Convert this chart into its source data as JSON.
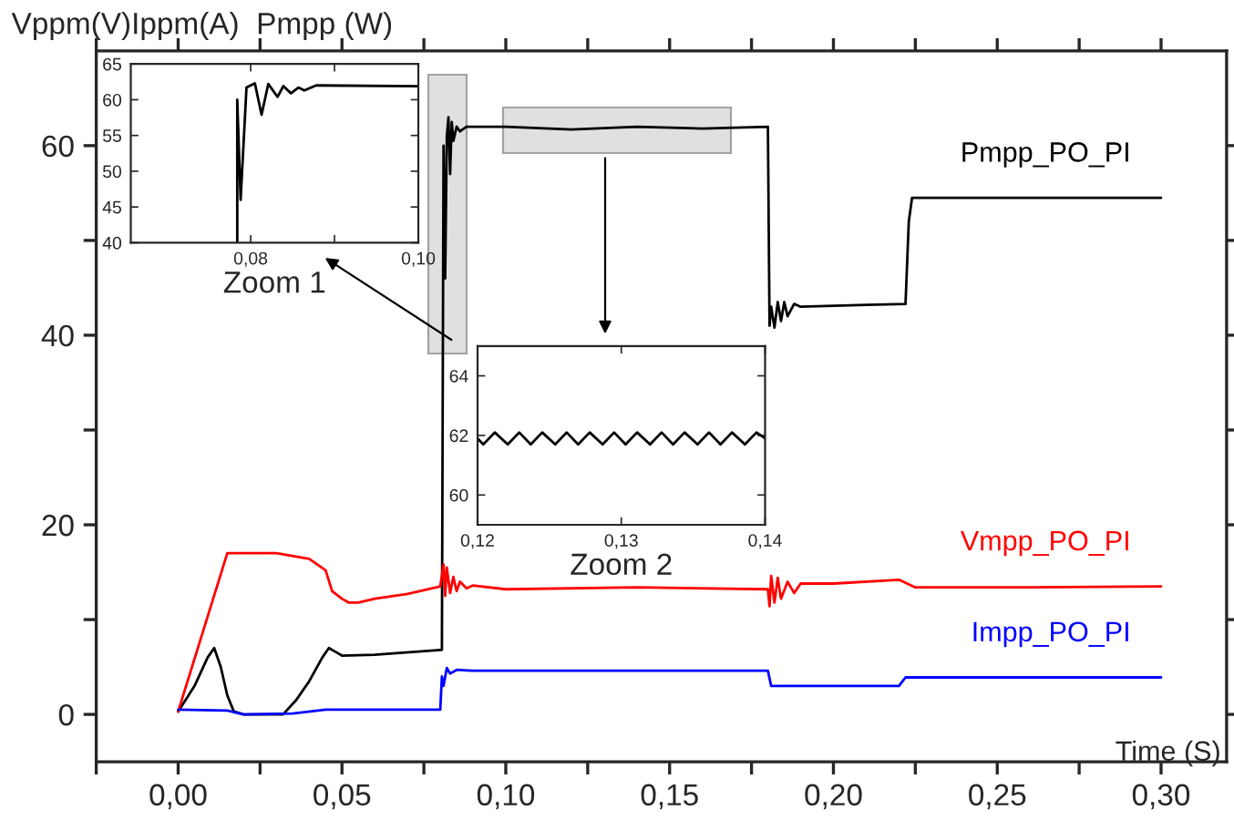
{
  "chart_data": [
    {
      "type": "line",
      "ylabel": "Vppm(V)Ippm(A)  Pmpp (W)",
      "xlabel": "Time (S)",
      "xlim": [
        -0.025,
        0.32
      ],
      "ylim": [
        -5,
        70
      ],
      "xticks": [
        {
          "value": -0.025,
          "label": null
        },
        {
          "value": 0,
          "label": "0,00"
        },
        {
          "value": 0.025,
          "label": null
        },
        {
          "value": 0.05,
          "label": "0,05"
        },
        {
          "value": 0.075,
          "label": null
        },
        {
          "value": 0.1,
          "label": "0,10"
        },
        {
          "value": 0.125,
          "label": null
        },
        {
          "value": 0.15,
          "label": "0,15"
        },
        {
          "value": 0.175,
          "label": null
        },
        {
          "value": 0.2,
          "label": "0,20"
        },
        {
          "value": 0.225,
          "label": null
        },
        {
          "value": 0.25,
          "label": "0,25"
        },
        {
          "value": 0.275,
          "label": null
        },
        {
          "value": 0.3,
          "label": "0,30"
        }
      ],
      "yticks": [
        0,
        {
          "value": 10,
          "label": null
        },
        20,
        {
          "value": 30,
          "label": null
        },
        40,
        {
          "value": 50,
          "label": null
        },
        60
      ],
      "series": [
        {
          "name": "Pmpp_PO_PI",
          "color": "#000000",
          "x": [
            0,
            0.005,
            0.009,
            0.011,
            0.013,
            0.015,
            0.017,
            0.02,
            0.032,
            0.036,
            0.04,
            0.044,
            0.046,
            0.048,
            0.05,
            0.06,
            0.08,
            0.0805,
            0.081,
            0.0815,
            0.082,
            0.0825,
            0.083,
            0.0835,
            0.084,
            0.085,
            0.086,
            0.088,
            0.1,
            0.12,
            0.14,
            0.16,
            0.18,
            0.1805,
            0.181,
            0.182,
            0.183,
            0.184,
            0.185,
            0.186,
            0.188,
            0.19,
            0.21,
            0.222,
            0.223,
            0.224,
            0.26,
            0.3
          ],
          "values": [
            0.3,
            3,
            6,
            7,
            5,
            2,
            0.3,
            0,
            0,
            1.5,
            3.5,
            6,
            7,
            6.6,
            6.2,
            6.3,
            6.8,
            6.8,
            60,
            46,
            61,
            63,
            57,
            62.5,
            60.5,
            62,
            61.5,
            62,
            62,
            61.7,
            62,
            61.8,
            62,
            41,
            43,
            40.8,
            43.5,
            41.5,
            43.5,
            42,
            43.3,
            43,
            43.2,
            43.3,
            52,
            54.5,
            54.5,
            54.5
          ]
        },
        {
          "name": "Vmpp_PO_PI",
          "color": "#ff0000",
          "x": [
            0,
            0.015,
            0.03,
            0.04,
            0.045,
            0.047,
            0.05,
            0.052,
            0.055,
            0.06,
            0.07,
            0.08,
            0.081,
            0.0815,
            0.082,
            0.083,
            0.084,
            0.085,
            0.086,
            0.088,
            0.09,
            0.1,
            0.14,
            0.18,
            0.1805,
            0.181,
            0.182,
            0.183,
            0.184,
            0.186,
            0.188,
            0.19,
            0.2,
            0.22,
            0.225,
            0.26,
            0.3
          ],
          "values": [
            0.3,
            17,
            17,
            16.4,
            15.2,
            13,
            12.2,
            11.8,
            11.8,
            12.2,
            12.7,
            13.5,
            15.8,
            12.5,
            15.5,
            12.8,
            14.5,
            13,
            14,
            13.3,
            13.6,
            13.2,
            13.4,
            13.2,
            11.4,
            14.6,
            11.8,
            14.4,
            12.2,
            14,
            12.8,
            13.8,
            13.8,
            14.2,
            13.4,
            13.4,
            13.5
          ]
        },
        {
          "name": "Impp_PO_PI",
          "color": "#0000ff",
          "x": [
            0,
            0.015,
            0.02,
            0.035,
            0.045,
            0.08,
            0.0805,
            0.081,
            0.082,
            0.083,
            0.085,
            0.09,
            0.18,
            0.181,
            0.22,
            0.222,
            0.3
          ],
          "values": [
            0.5,
            0.4,
            0,
            0.1,
            0.5,
            0.5,
            4,
            3,
            4.9,
            4.3,
            4.7,
            4.6,
            4.6,
            3,
            3,
            3.9,
            3.9
          ]
        }
      ]
    },
    {
      "type": "line",
      "xlabel": "Zoom 1",
      "xlim": [
        0.0657,
        0.1
      ],
      "ylim": [
        40,
        65
      ],
      "xticks": [
        {
          "value": 0.08,
          "label": "0,08"
        },
        {
          "value": 0.09,
          "label": null
        },
        {
          "value": 0.1,
          "label": "0,10"
        }
      ],
      "yticks": [
        40,
        45,
        50,
        55,
        60,
        65
      ],
      "series": [
        {
          "color": "#000000",
          "x": [
            0.0784,
            0.0784,
            0.0788,
            0.0795,
            0.0805,
            0.0813,
            0.0821,
            0.0832,
            0.0839,
            0.0848,
            0.0857,
            0.0864,
            0.0878,
            0.1
          ],
          "values": [
            40,
            60,
            46,
            61.7,
            62.3,
            57.9,
            62.2,
            60.4,
            61.9,
            60.9,
            61.7,
            61.3,
            62,
            61.9
          ]
        }
      ]
    },
    {
      "type": "line",
      "xlabel": "Zoom 2",
      "xlim": [
        0.12,
        0.14
      ],
      "ylim": [
        59,
        65
      ],
      "xticks": [
        {
          "value": 0.12,
          "label": "0,12"
        },
        {
          "value": 0.13,
          "label": "0,13"
        },
        {
          "value": 0.14,
          "label": "0,14"
        }
      ],
      "yticks": [
        60,
        62,
        64
      ],
      "series": [
        {
          "color": "#000000",
          "x": [
            0.12,
            0.1204,
            0.1212,
            0.1221,
            0.1229,
            0.1237,
            0.1245,
            0.1254,
            0.1262,
            0.127,
            0.1278,
            0.1287,
            0.1295,
            0.1303,
            0.1311,
            0.132,
            0.1328,
            0.1336,
            0.1344,
            0.1353,
            0.1361,
            0.1369,
            0.1377,
            0.1386,
            0.1394,
            0.14
          ],
          "values": [
            61.9,
            61.7,
            62.1,
            61.7,
            62.1,
            61.7,
            62.1,
            61.7,
            62.1,
            61.7,
            62.1,
            61.7,
            62.1,
            61.7,
            62.1,
            61.7,
            62.1,
            61.7,
            62.1,
            61.7,
            62.1,
            61.7,
            62.1,
            61.7,
            62.1,
            61.9
          ]
        }
      ]
    }
  ]
}
